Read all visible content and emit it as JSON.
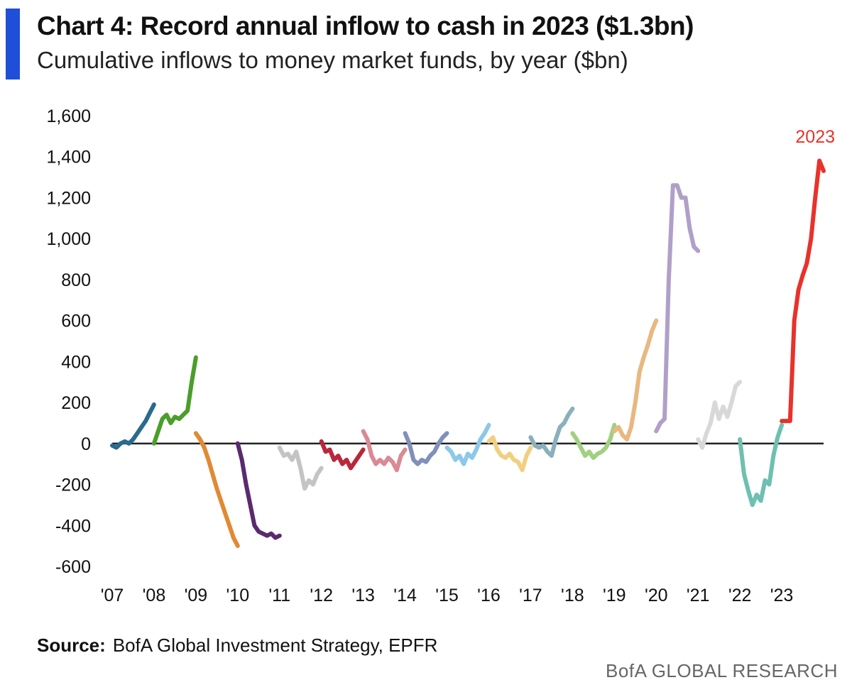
{
  "header": {
    "title": "Chart 4: Record annual inflow to cash in 2023 ($1.3bn)",
    "subtitle": "Cumulative inflows to money market funds, by year ($bn)"
  },
  "footer": {
    "source_label": "Source:",
    "source_text": "BofA Global Investment Strategy, EPFR",
    "brand": "BofA GLOBAL RESEARCH"
  },
  "chart_data": {
    "type": "line",
    "title": "Chart 4: Record annual inflow to cash in 2023 ($1.3bn)",
    "ylabel": "",
    "xlabel": "",
    "ylim": [
      -600,
      1600
    ],
    "xlim": [
      2007,
      2024
    ],
    "yticks": [
      1600,
      1400,
      1200,
      1000,
      800,
      600,
      400,
      200,
      0,
      -200,
      -400,
      -600
    ],
    "ytick_labels": [
      "1,600",
      "1,400",
      "1,200",
      "1,000",
      "800",
      "600",
      "400",
      "200",
      "0",
      "-200",
      "-400",
      "-600"
    ],
    "xticks": [
      2007,
      2008,
      2009,
      2010,
      2011,
      2012,
      2013,
      2014,
      2015,
      2016,
      2017,
      2018,
      2019,
      2020,
      2021,
      2022,
      2023
    ],
    "xtick_labels": [
      "'07",
      "'08",
      "'09",
      "'10",
      "'11",
      "'12",
      "'13",
      "'14",
      "'15",
      "'16",
      "'17",
      "'18",
      "'19",
      "'20",
      "'21",
      "'22",
      "'23"
    ],
    "grid": false,
    "zero_line": true,
    "annotation": {
      "text": "2023",
      "x": 2023.8,
      "y": 1500,
      "color": "#e8322b"
    },
    "series": [
      {
        "color": "#2a6a8e",
        "points": [
          [
            2007.0,
            -10
          ],
          [
            2007.1,
            -20
          ],
          [
            2007.2,
            0
          ],
          [
            2007.3,
            10
          ],
          [
            2007.4,
            0
          ],
          [
            2007.5,
            20
          ],
          [
            2007.6,
            50
          ],
          [
            2007.7,
            80
          ],
          [
            2007.8,
            110
          ],
          [
            2007.9,
            150
          ],
          [
            2008.0,
            190
          ]
        ]
      },
      {
        "color": "#4a9e2a",
        "points": [
          [
            2008.0,
            0
          ],
          [
            2008.1,
            60
          ],
          [
            2008.2,
            120
          ],
          [
            2008.3,
            140
          ],
          [
            2008.4,
            100
          ],
          [
            2008.5,
            130
          ],
          [
            2008.6,
            120
          ],
          [
            2008.7,
            140
          ],
          [
            2008.8,
            160
          ],
          [
            2008.9,
            300
          ],
          [
            2009.0,
            420
          ]
        ]
      },
      {
        "color": "#e08a32",
        "points": [
          [
            2009.0,
            50
          ],
          [
            2009.1,
            20
          ],
          [
            2009.2,
            -20
          ],
          [
            2009.3,
            -80
          ],
          [
            2009.4,
            -150
          ],
          [
            2009.5,
            -220
          ],
          [
            2009.6,
            -280
          ],
          [
            2009.7,
            -340
          ],
          [
            2009.8,
            -400
          ],
          [
            2009.9,
            -460
          ],
          [
            2010.0,
            -500
          ]
        ]
      },
      {
        "color": "#5a2a6e",
        "points": [
          [
            2010.0,
            0
          ],
          [
            2010.1,
            -80
          ],
          [
            2010.2,
            -200
          ],
          [
            2010.3,
            -300
          ],
          [
            2010.4,
            -400
          ],
          [
            2010.5,
            -430
          ],
          [
            2010.6,
            -440
          ],
          [
            2010.7,
            -450
          ],
          [
            2010.8,
            -440
          ],
          [
            2010.9,
            -460
          ],
          [
            2011.0,
            -450
          ]
        ]
      },
      {
        "color": "#c4c4c4",
        "points": [
          [
            2011.0,
            -20
          ],
          [
            2011.1,
            -60
          ],
          [
            2011.2,
            -50
          ],
          [
            2011.3,
            -80
          ],
          [
            2011.4,
            -40
          ],
          [
            2011.5,
            -120
          ],
          [
            2011.6,
            -220
          ],
          [
            2011.7,
            -180
          ],
          [
            2011.8,
            -200
          ],
          [
            2011.9,
            -150
          ],
          [
            2012.0,
            -120
          ]
        ]
      },
      {
        "color": "#b8283a",
        "points": [
          [
            2012.0,
            10
          ],
          [
            2012.1,
            -40
          ],
          [
            2012.2,
            -30
          ],
          [
            2012.3,
            -80
          ],
          [
            2012.4,
            -60
          ],
          [
            2012.5,
            -100
          ],
          [
            2012.6,
            -80
          ],
          [
            2012.7,
            -120
          ],
          [
            2012.8,
            -90
          ],
          [
            2012.9,
            -60
          ],
          [
            2013.0,
            -30
          ]
        ]
      },
      {
        "color": "#d98a94",
        "points": [
          [
            2013.0,
            60
          ],
          [
            2013.1,
            20
          ],
          [
            2013.2,
            -60
          ],
          [
            2013.3,
            -100
          ],
          [
            2013.4,
            -80
          ],
          [
            2013.5,
            -100
          ],
          [
            2013.6,
            -70
          ],
          [
            2013.7,
            -90
          ],
          [
            2013.8,
            -130
          ],
          [
            2013.9,
            -60
          ],
          [
            2014.0,
            -30
          ]
        ]
      },
      {
        "color": "#8090b8",
        "points": [
          [
            2014.0,
            50
          ],
          [
            2014.1,
            0
          ],
          [
            2014.2,
            -80
          ],
          [
            2014.3,
            -100
          ],
          [
            2014.4,
            -80
          ],
          [
            2014.5,
            -90
          ],
          [
            2014.6,
            -60
          ],
          [
            2014.7,
            -40
          ],
          [
            2014.8,
            0
          ],
          [
            2014.9,
            30
          ],
          [
            2015.0,
            50
          ]
        ]
      },
      {
        "color": "#8cc8e8",
        "points": [
          [
            2015.0,
            -20
          ],
          [
            2015.1,
            -40
          ],
          [
            2015.2,
            -80
          ],
          [
            2015.3,
            -60
          ],
          [
            2015.4,
            -100
          ],
          [
            2015.5,
            -50
          ],
          [
            2015.6,
            -70
          ],
          [
            2015.7,
            -30
          ],
          [
            2015.8,
            20
          ],
          [
            2015.9,
            50
          ],
          [
            2016.0,
            90
          ]
        ]
      },
      {
        "color": "#f0d080",
        "points": [
          [
            2016.0,
            10
          ],
          [
            2016.1,
            30
          ],
          [
            2016.2,
            -30
          ],
          [
            2016.3,
            -60
          ],
          [
            2016.4,
            -70
          ],
          [
            2016.5,
            -50
          ],
          [
            2016.6,
            -80
          ],
          [
            2016.7,
            -90
          ],
          [
            2016.8,
            -130
          ],
          [
            2016.9,
            -60
          ],
          [
            2017.0,
            -20
          ]
        ]
      },
      {
        "color": "#8ab0bc",
        "points": [
          [
            2017.0,
            30
          ],
          [
            2017.1,
            -10
          ],
          [
            2017.2,
            -20
          ],
          [
            2017.3,
            -10
          ],
          [
            2017.4,
            -40
          ],
          [
            2017.5,
            -60
          ],
          [
            2017.6,
            20
          ],
          [
            2017.7,
            80
          ],
          [
            2017.8,
            100
          ],
          [
            2017.9,
            140
          ],
          [
            2018.0,
            170
          ]
        ]
      },
      {
        "color": "#a0d080",
        "points": [
          [
            2018.0,
            50
          ],
          [
            2018.1,
            20
          ],
          [
            2018.2,
            -20
          ],
          [
            2018.3,
            -60
          ],
          [
            2018.4,
            -40
          ],
          [
            2018.5,
            -70
          ],
          [
            2018.6,
            -50
          ],
          [
            2018.7,
            -40
          ],
          [
            2018.8,
            -20
          ],
          [
            2018.9,
            20
          ],
          [
            2019.0,
            90
          ]
        ]
      },
      {
        "color": "#e8b880",
        "points": [
          [
            2019.0,
            60
          ],
          [
            2019.1,
            80
          ],
          [
            2019.2,
            40
          ],
          [
            2019.3,
            20
          ],
          [
            2019.4,
            80
          ],
          [
            2019.5,
            200
          ],
          [
            2019.6,
            350
          ],
          [
            2019.7,
            420
          ],
          [
            2019.8,
            480
          ],
          [
            2019.9,
            550
          ],
          [
            2020.0,
            600
          ]
        ]
      },
      {
        "color": "#b0a0c8",
        "points": [
          [
            2020.0,
            60
          ],
          [
            2020.1,
            100
          ],
          [
            2020.2,
            120
          ],
          [
            2020.3,
            800
          ],
          [
            2020.4,
            1260
          ],
          [
            2020.5,
            1260
          ],
          [
            2020.6,
            1200
          ],
          [
            2020.7,
            1200
          ],
          [
            2020.8,
            1050
          ],
          [
            2020.9,
            960
          ],
          [
            2021.0,
            940
          ]
        ]
      },
      {
        "color": "#d8d8d8",
        "points": [
          [
            2021.0,
            20
          ],
          [
            2021.1,
            -20
          ],
          [
            2021.2,
            50
          ],
          [
            2021.3,
            100
          ],
          [
            2021.4,
            200
          ],
          [
            2021.5,
            120
          ],
          [
            2021.6,
            180
          ],
          [
            2021.7,
            130
          ],
          [
            2021.8,
            200
          ],
          [
            2021.9,
            280
          ],
          [
            2022.0,
            300
          ]
        ]
      },
      {
        "color": "#6ec0b0",
        "points": [
          [
            2022.0,
            20
          ],
          [
            2022.1,
            -150
          ],
          [
            2022.2,
            -230
          ],
          [
            2022.3,
            -300
          ],
          [
            2022.4,
            -250
          ],
          [
            2022.5,
            -280
          ],
          [
            2022.6,
            -180
          ],
          [
            2022.7,
            -200
          ],
          [
            2022.8,
            -60
          ],
          [
            2022.9,
            30
          ],
          [
            2023.0,
            90
          ]
        ]
      },
      {
        "color": "#e8322b",
        "points": [
          [
            2023.0,
            110
          ],
          [
            2023.1,
            110
          ],
          [
            2023.2,
            110
          ],
          [
            2023.3,
            600
          ],
          [
            2023.4,
            750
          ],
          [
            2023.5,
            820
          ],
          [
            2023.6,
            880
          ],
          [
            2023.7,
            1000
          ],
          [
            2023.8,
            1200
          ],
          [
            2023.9,
            1380
          ],
          [
            2024.0,
            1330
          ]
        ]
      }
    ]
  }
}
